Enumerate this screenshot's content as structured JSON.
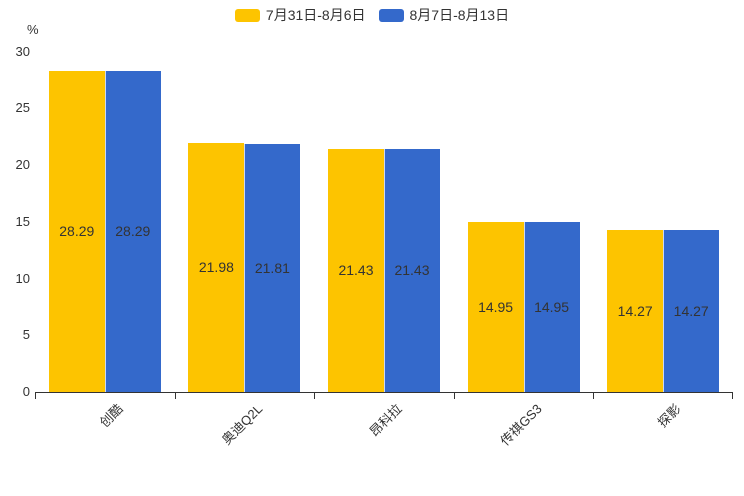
{
  "chart_data": {
    "type": "bar",
    "title": "",
    "ylabel": "%",
    "categories": [
      "创酷",
      "奥迪Q2L",
      "昂科拉",
      "传祺GS3",
      "探影"
    ],
    "series": [
      {
        "name": "7月31日-8月6日",
        "color": "#fdc400",
        "values": [
          28.29,
          21.98,
          21.43,
          14.95,
          14.27
        ]
      },
      {
        "name": "8月7日-8月13日",
        "color": "#3469cb",
        "values": [
          28.29,
          21.81,
          21.43,
          14.95,
          14.27
        ]
      }
    ],
    "yticks": [
      0,
      5,
      10,
      15,
      20,
      25,
      30
    ],
    "ylim": [
      0,
      30
    ],
    "grid": false,
    "legend_position": "top",
    "bar_label_position": "inside-center",
    "text_color": "#333333",
    "axis_color": "#333333",
    "background_color": "#ffffff"
  }
}
